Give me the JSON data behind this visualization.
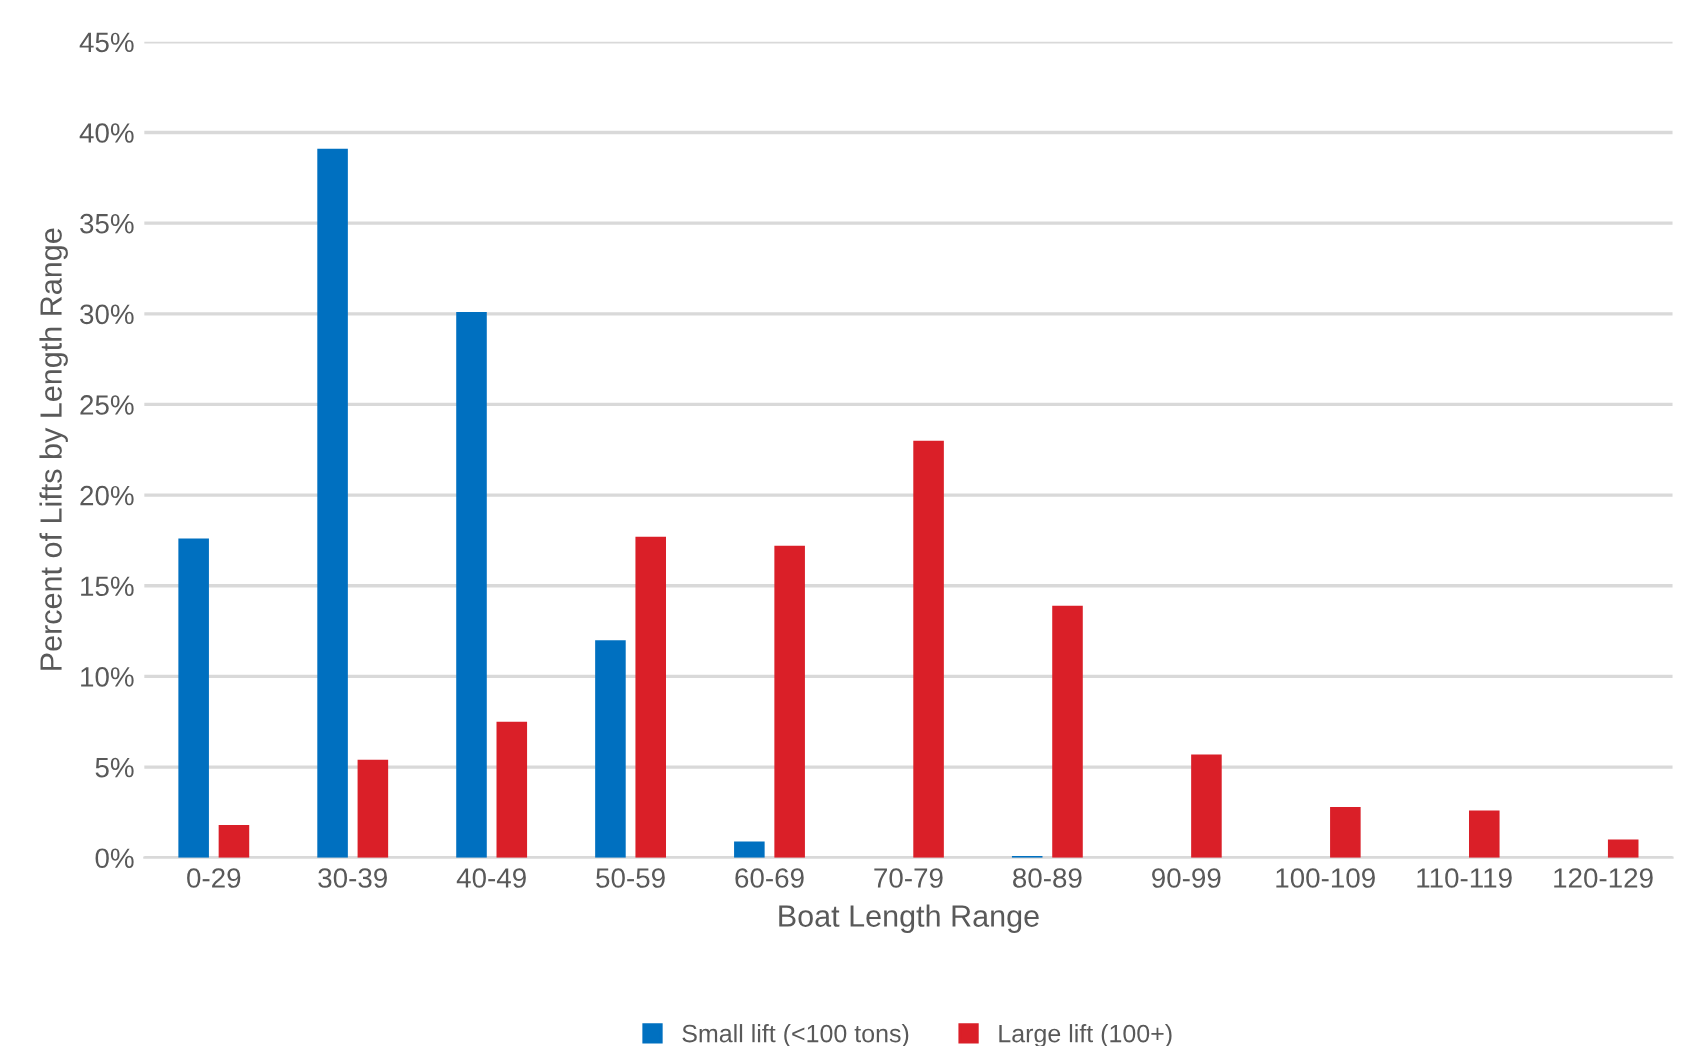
{
  "chart_data": {
    "type": "bar",
    "xlabel": "Boat Length Range",
    "ylabel": "Percent of Lifts by Length Range",
    "categories": [
      "0-29",
      "30-39",
      "40-49",
      "50-59",
      "60-69",
      "70-79",
      "80-89",
      "90-99",
      "100-109",
      "110-119",
      "120-129"
    ],
    "series": [
      {
        "name": "Small lift (<100 tons)",
        "color": "#0070c0",
        "values": [
          17.6,
          39.1,
          30.1,
          12.0,
          0.9,
          0,
          0.1,
          0,
          0,
          0,
          0
        ]
      },
      {
        "name": "Large lift (100+)",
        "color": "#da1f28",
        "values": [
          1.8,
          5.4,
          7.5,
          17.7,
          17.2,
          23.0,
          13.9,
          5.7,
          2.8,
          2.6,
          1.0
        ]
      }
    ],
    "ylim": [
      0,
      45
    ],
    "yticks": [
      {
        "value": 0,
        "label": "0%"
      },
      {
        "value": 5,
        "label": "5%"
      },
      {
        "value": 10,
        "label": "10%"
      },
      {
        "value": 15,
        "label": "15%"
      },
      {
        "value": 20,
        "label": "20%"
      },
      {
        "value": 25,
        "label": "25%"
      },
      {
        "value": 30,
        "label": "30%"
      },
      {
        "value": 35,
        "label": "35%"
      },
      {
        "value": 40,
        "label": "40%"
      },
      {
        "value": 45,
        "label": "45%"
      }
    ],
    "grid": "y",
    "legend": "bottom"
  }
}
